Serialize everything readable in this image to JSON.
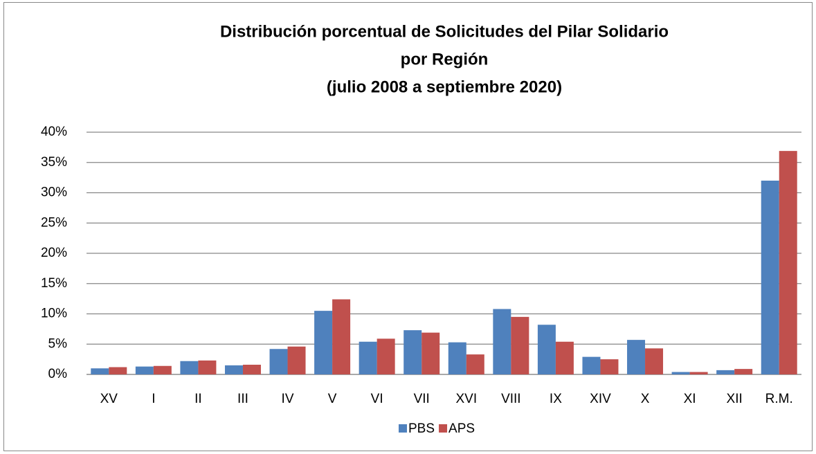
{
  "chart_data": {
    "type": "bar",
    "title": [
      "Distribución porcentual de Solicitudes del Pilar Solidario",
      "por Región",
      "(julio 2008 a septiembre 2020)"
    ],
    "categories": [
      "XV",
      "I",
      "II",
      "III",
      "IV",
      "V",
      "VI",
      "VII",
      "XVI",
      "VIII",
      "IX",
      "XIV",
      "X",
      "XI",
      "XII",
      "R.M."
    ],
    "series": [
      {
        "name": "PBS",
        "color": "#4f81bd",
        "values": [
          1.0,
          1.3,
          2.2,
          1.5,
          4.2,
          10.5,
          5.4,
          7.3,
          5.3,
          10.8,
          8.2,
          2.9,
          5.7,
          0.4,
          0.7,
          32.0
        ]
      },
      {
        "name": "APS",
        "color": "#c0504d",
        "values": [
          1.2,
          1.4,
          2.3,
          1.6,
          4.6,
          12.4,
          5.9,
          6.9,
          3.3,
          9.5,
          5.4,
          2.5,
          4.3,
          0.4,
          0.9,
          36.9
        ]
      }
    ],
    "ylim": [
      0,
      40
    ],
    "yticks": [
      {
        "value": 0,
        "label": "0%"
      },
      {
        "value": 5,
        "label": "5%"
      },
      {
        "value": 10,
        "label": "10%"
      },
      {
        "value": 15,
        "label": "15%"
      },
      {
        "value": 20,
        "label": "20%"
      },
      {
        "value": 25,
        "label": "25%"
      },
      {
        "value": 30,
        "label": "30%"
      },
      {
        "value": 35,
        "label": "35%"
      },
      {
        "value": 40,
        "label": "40%"
      }
    ],
    "grid": true,
    "legend": "bottom"
  }
}
